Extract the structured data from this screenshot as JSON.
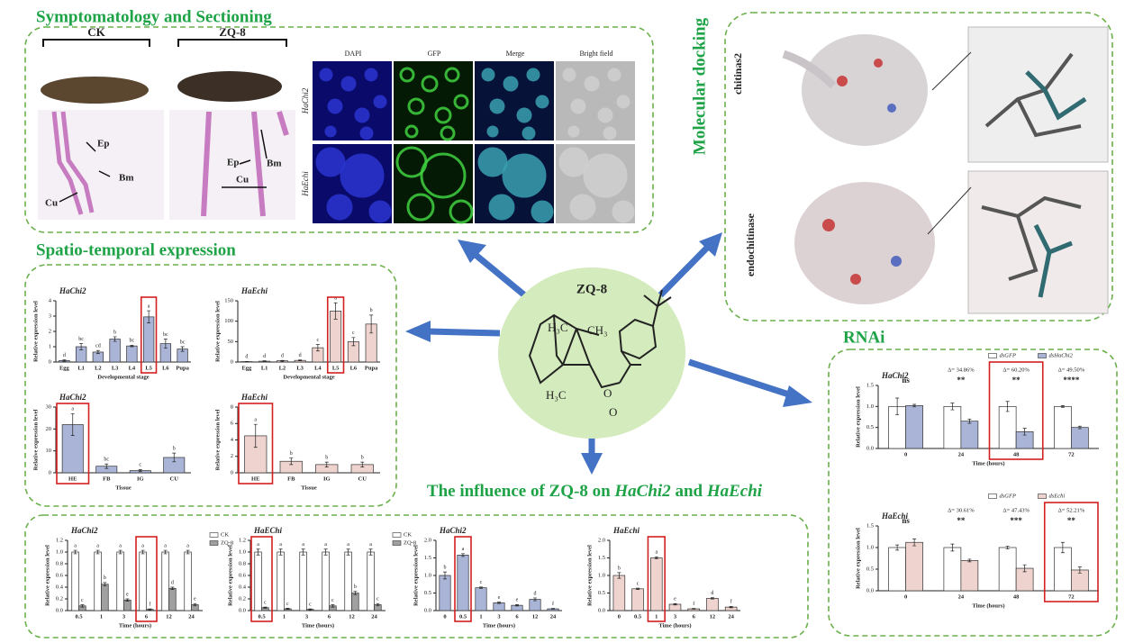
{
  "symptom": {
    "title": "Symptomatology and Sectioning",
    "ck": "CK",
    "zq": "ZQ-8",
    "ep1": "Ep",
    "bm1": "Bm",
    "cu1": "Cu",
    "ep2": "Ep",
    "bm2": "Bm",
    "cu2": "Cu",
    "columns": [
      "DAPI",
      "GFP",
      "Merge",
      "Bright field"
    ],
    "rows": [
      "HaChi2",
      "HaEchi"
    ]
  },
  "docking": {
    "title": "Molecular docking",
    "labels": [
      "chitinas2",
      "endochitinase"
    ]
  },
  "spatio": {
    "title": "Spatio-temporal expression"
  },
  "rnai": {
    "title": "RNAi"
  },
  "influence": {
    "title": [
      "The influence of ZQ-8 on ",
      "HaChi2",
      " and ",
      "HaEchi"
    ]
  },
  "center": {
    "title": "ZQ-8",
    "atoms": [
      "H₃C",
      "CH₃",
      "H₃C",
      "O",
      "O"
    ]
  },
  "charts": [
    {
      "type": "bar",
      "title": "HaChi2",
      "ylabel": "Relative expression level",
      "xlabel": "Developmental stage",
      "categories": [
        "Egg",
        "L1",
        "L2",
        "L3",
        "L4",
        "L5",
        "L6",
        "Pupa"
      ],
      "ylim": [
        0,
        4
      ],
      "yticks": [
        0,
        1,
        2,
        3,
        4
      ],
      "highlight": 5,
      "series": [
        {
          "color": "#a9b4d6",
          "values": [
            0.1,
            1.0,
            0.65,
            1.5,
            1.05,
            2.95,
            1.2,
            0.85
          ],
          "errors": [
            0.05,
            0.2,
            0.1,
            0.15,
            0.05,
            0.4,
            0.3,
            0.15
          ],
          "letters": [
            "d",
            "bc",
            "cd",
            "b",
            "bc",
            "a",
            "bc",
            "bc"
          ]
        }
      ]
    },
    {
      "type": "bar",
      "title": "HaEchi",
      "ylabel": "Relative expression level",
      "xlabel": "Developmental stage",
      "categories": [
        "Egg",
        "L1",
        "L2",
        "L3",
        "L4",
        "L5",
        "L6",
        "Pupa"
      ],
      "ylim": [
        0,
        150
      ],
      "yticks": [
        0,
        50,
        100,
        150
      ],
      "highlight": 5,
      "series": [
        {
          "color": "#efd3ce",
          "values": [
            1,
            2,
            3,
            4,
            35,
            125,
            50,
            93
          ],
          "errors": [
            0.5,
            1,
            1,
            1,
            8,
            20,
            10,
            22
          ],
          "letters": [
            "d",
            "d",
            "d",
            "d",
            "c",
            "a",
            "c",
            "b"
          ]
        }
      ]
    },
    {
      "type": "bar",
      "title": "HaChi2",
      "ylabel": "Relative expression level",
      "xlabel": "Tissue",
      "categories": [
        "HE",
        "FB",
        "IG",
        "CU"
      ],
      "ylim": [
        0,
        30
      ],
      "yticks": [
        0,
        10,
        20,
        30
      ],
      "highlight": 0,
      "series": [
        {
          "color": "#a9b4d6",
          "values": [
            22,
            3,
            1,
            7
          ],
          "errors": [
            5,
            1,
            0.5,
            2
          ],
          "letters": [
            "a",
            "bc",
            "c",
            "b"
          ]
        }
      ]
    },
    {
      "type": "bar",
      "title": "HaEchi",
      "ylabel": "Relative expression level",
      "xlabel": "Tissue",
      "categories": [
        "HE",
        "FB",
        "IG",
        "CU"
      ],
      "ylim": [
        0,
        8
      ],
      "yticks": [
        0,
        2,
        4,
        6,
        8
      ],
      "highlight": 0,
      "series": [
        {
          "color": "#efd3ce",
          "values": [
            4.5,
            1.4,
            1.0,
            1.0
          ],
          "errors": [
            1.4,
            0.4,
            0.3,
            0.3
          ],
          "letters": [
            "a",
            "b",
            "b",
            "b"
          ]
        }
      ]
    },
    {
      "type": "bar",
      "title": "HaChi2",
      "ylabel": "Relative expression level",
      "xlabel": "Time (hours)",
      "categories": [
        0.5,
        1,
        3,
        6,
        12,
        24
      ],
      "ylim": [
        0,
        1.2
      ],
      "yticks": [
        {
          "value": 0,
          "label": "0.0"
        },
        0.2,
        0.4,
        0.6,
        0.8,
        {
          "value": 1,
          "label": "1.0"
        },
        1.2
      ],
      "highlight": 3,
      "legend": "right",
      "series": [
        {
          "name": "CK",
          "color": "#ffffff",
          "values": [
            1,
            1,
            1,
            1,
            1,
            1
          ],
          "errors": [
            0.03,
            0.03,
            0.03,
            0.03,
            0.03,
            0.03
          ],
          "letters": [
            "a",
            "a",
            "a",
            "a",
            "a",
            "a"
          ]
        },
        {
          "name": "ZQ-8",
          "color": "#a0a0a0",
          "values": [
            0.08,
            0.45,
            0.18,
            0.02,
            0.38,
            0.1
          ],
          "errors": [
            0.02,
            0.03,
            0.02,
            0.01,
            0.02,
            0.02
          ],
          "letters": [
            "c",
            "b",
            "e",
            "f",
            "d",
            "e"
          ]
        }
      ]
    },
    {
      "type": "bar",
      "title": "HaEChi",
      "ylabel": "Relative expression level",
      "xlabel": "Time (hours)",
      "categories": [
        0.5,
        1,
        3,
        6,
        12,
        24
      ],
      "ylim": [
        0,
        1.2
      ],
      "yticks": [
        {
          "value": 0,
          "label": "0.0"
        },
        0.2,
        0.4,
        0.6,
        0.8,
        {
          "value": 1,
          "label": "1.0"
        },
        1.2
      ],
      "highlight": 0,
      "legend": "right",
      "series": [
        {
          "name": "CK",
          "color": "#ffffff",
          "values": [
            1,
            1,
            1,
            1,
            1,
            1
          ],
          "errors": [
            0.05,
            0.05,
            0.05,
            0.05,
            0.05,
            0.05
          ],
          "letters": [
            "a",
            "a",
            "a",
            "a",
            "a",
            "a"
          ]
        },
        {
          "name": "ZQ-8",
          "color": "#a0a0a0",
          "values": [
            0.05,
            0.03,
            0.02,
            0.08,
            0.3,
            0.1
          ],
          "errors": [
            0.01,
            0.01,
            0.01,
            0.02,
            0.03,
            0.02
          ],
          "letters": [
            "c",
            "c",
            "c",
            "c",
            "b",
            "c"
          ]
        }
      ]
    },
    {
      "type": "bar",
      "title": "HaChi2",
      "ylabel": "Relative expression level",
      "xlabel": "Time (hours)",
      "categories": [
        0,
        0.5,
        1,
        3,
        6,
        12,
        24
      ],
      "ylim": [
        0,
        2
      ],
      "yticks": [
        {
          "value": 0,
          "label": "0.0"
        },
        0.5,
        {
          "value": 1,
          "label": "1.0"
        },
        1.5,
        {
          "value": 2,
          "label": "2.0"
        }
      ],
      "highlight": 1,
      "series": [
        {
          "color": "#a9b4d6",
          "values": [
            1.0,
            1.58,
            0.65,
            0.22,
            0.15,
            0.32,
            0.05
          ],
          "errors": [
            0.1,
            0.04,
            0.02,
            0.02,
            0.02,
            0.04,
            0.01
          ],
          "letters": [
            "b",
            "a",
            "c",
            "e",
            "e",
            "d",
            "f"
          ]
        }
      ]
    },
    {
      "type": "bar",
      "title": "HaEchi",
      "ylabel": "Relative expression level",
      "xlabel": "Time (hours)",
      "categories": [
        0,
        0.5,
        1,
        3,
        6,
        12,
        24
      ],
      "ylim": [
        0,
        2
      ],
      "yticks": [
        {
          "value": 0,
          "label": "0.0"
        },
        0.5,
        {
          "value": 1,
          "label": "1.0"
        },
        1.5,
        {
          "value": 2,
          "label": "2.0"
        }
      ],
      "highlight": 2,
      "series": [
        {
          "color": "#efd3ce",
          "values": [
            1.0,
            0.62,
            1.5,
            0.18,
            0.05,
            0.35,
            0.1
          ],
          "errors": [
            0.08,
            0.02,
            0.03,
            0.02,
            0.01,
            0.02,
            0.02
          ],
          "letters": [
            "b",
            "c",
            "a",
            "e",
            "f",
            "d",
            "f"
          ]
        }
      ]
    },
    {
      "type": "bar",
      "title": "HaChi2",
      "ylabel": "Relative expression level",
      "xlabel": "Time (hours)",
      "categories": [
        0,
        24,
        48,
        72
      ],
      "ylim": [
        0,
        1.5
      ],
      "yticks": [
        {
          "value": 0,
          "label": "0.0"
        },
        0.5,
        {
          "value": 1,
          "label": "1.0"
        },
        1.5
      ],
      "highlight": 2,
      "legend": "top",
      "sig": [
        "ns",
        "**",
        "**",
        "****"
      ],
      "deltas": [
        null,
        "Δ= 34.86%",
        "Δ= 60.20%",
        "Δ= 49.50%"
      ],
      "series": [
        {
          "name": "dsGFP",
          "color": "#ffffff",
          "values": [
            1.0,
            1.0,
            1.0,
            1.0
          ],
          "errors": [
            0.2,
            0.08,
            0.12,
            0.02
          ]
        },
        {
          "name": "dsHaChi2",
          "color": "#a9b4d6",
          "values": [
            1.02,
            0.65,
            0.4,
            0.5
          ],
          "errors": [
            0.03,
            0.05,
            0.08,
            0.03
          ]
        }
      ]
    },
    {
      "type": "bar",
      "title": "HaEchi",
      "ylabel": "Relative expression level",
      "xlabel": "Time (hours)",
      "categories": [
        0,
        24,
        48,
        72
      ],
      "ylim": [
        0,
        1.5
      ],
      "yticks": [
        {
          "value": 0,
          "label": "0.0"
        },
        0.5,
        {
          "value": 1,
          "label": "1.0"
        },
        1.5
      ],
      "highlight": 3,
      "legend": "top",
      "sig": [
        "ns",
        "**",
        "***",
        "**"
      ],
      "deltas": [
        null,
        "Δ= 30.61%",
        "Δ= 47.43%",
        "Δ= 52.21%"
      ],
      "series": [
        {
          "name": "dsGFP",
          "color": "#ffffff",
          "values": [
            1.0,
            1.0,
            1.0,
            1.0
          ],
          "errors": [
            0.06,
            0.08,
            0.03,
            0.12
          ]
        },
        {
          "name": "dsEchi",
          "color": "#efd3ce",
          "values": [
            1.12,
            0.7,
            0.52,
            0.48
          ],
          "errors": [
            0.08,
            0.03,
            0.08,
            0.07
          ]
        }
      ]
    }
  ]
}
